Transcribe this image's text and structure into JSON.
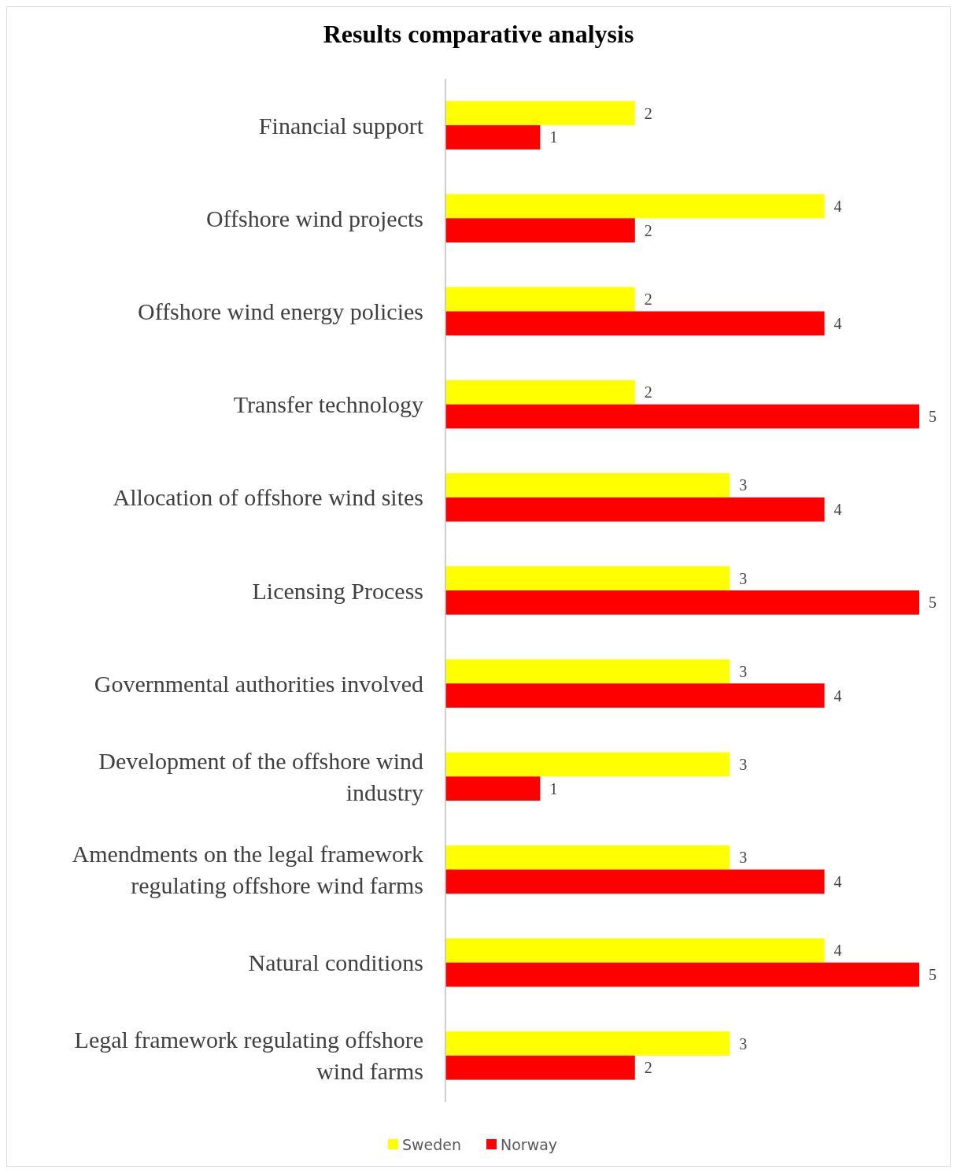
{
  "chart_data": {
    "type": "bar",
    "orientation": "horizontal",
    "title": "Results comparative analysis",
    "categories": [
      "Financial support",
      "Offshore wind projects",
      "Offshore wind energy policies",
      "Transfer technology",
      "Allocation of offshore wind sites",
      "Licensing Process",
      "Governmental authorities involved",
      "Development of the offshore wind industry",
      "Amendments on the legal framework regulating offshore wind farms",
      "Natural conditions",
      "Legal framework regulating offshore wind farms"
    ],
    "series": [
      {
        "name": "Sweden",
        "color": "#ffff00",
        "values": [
          2,
          4,
          2,
          2,
          3,
          3,
          3,
          3,
          3,
          4,
          3
        ]
      },
      {
        "name": "Norway",
        "color": "#ff0000",
        "values": [
          1,
          2,
          4,
          5,
          4,
          5,
          4,
          1,
          4,
          5,
          2
        ]
      }
    ],
    "xlim": [
      0,
      5
    ],
    "tick_labels": "y",
    "data_labels": true,
    "legend": "bottom"
  }
}
